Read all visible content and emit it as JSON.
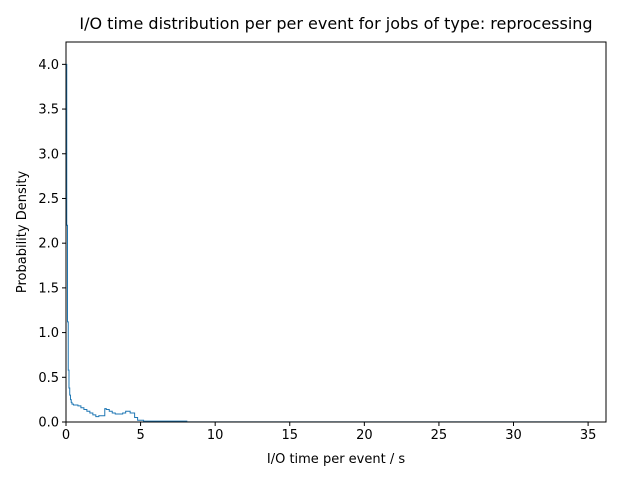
{
  "chart_data": {
    "type": "histogram",
    "title": "I/O time distribution per per event for jobs of type: reprocessing",
    "xlabel": "I/O time per event / s",
    "ylabel": "Probability Density",
    "xlim": [
      0,
      36.2
    ],
    "ylim": [
      0,
      4.25
    ],
    "xticks": [
      "0",
      "5",
      "10",
      "15",
      "20",
      "25",
      "30",
      "35"
    ],
    "yticks": [
      "0.0",
      "0.5",
      "1.0",
      "1.5",
      "2.0",
      "2.5",
      "3.0",
      "3.5",
      "4.0"
    ],
    "grid": false,
    "histtype": "step",
    "line_color": "#1f77b4",
    "series": [
      {
        "x": [
          0,
          0.05,
          0.1,
          0.15,
          0.2,
          0.25,
          0.3,
          0.35,
          0.4,
          0.5,
          0.6,
          0.8,
          1.0,
          1.2,
          1.4,
          1.6,
          1.8,
          2.0,
          2.2,
          2.6,
          2.7,
          2.9,
          3.1,
          3.3,
          3.5,
          3.8,
          4.0,
          4.3,
          4.6,
          4.8,
          5.2,
          6.0,
          7.0,
          8.1,
          35
        ],
        "y": [
          4.0,
          2.2,
          1.12,
          0.58,
          0.38,
          0.3,
          0.25,
          0.22,
          0.2,
          0.19,
          0.19,
          0.18,
          0.16,
          0.14,
          0.12,
          0.1,
          0.08,
          0.06,
          0.07,
          0.15,
          0.14,
          0.12,
          0.1,
          0.09,
          0.09,
          0.1,
          0.12,
          0.1,
          0.05,
          0.02,
          0.01,
          0.01,
          0.01,
          0.002,
          0.0
        ]
      }
    ]
  }
}
